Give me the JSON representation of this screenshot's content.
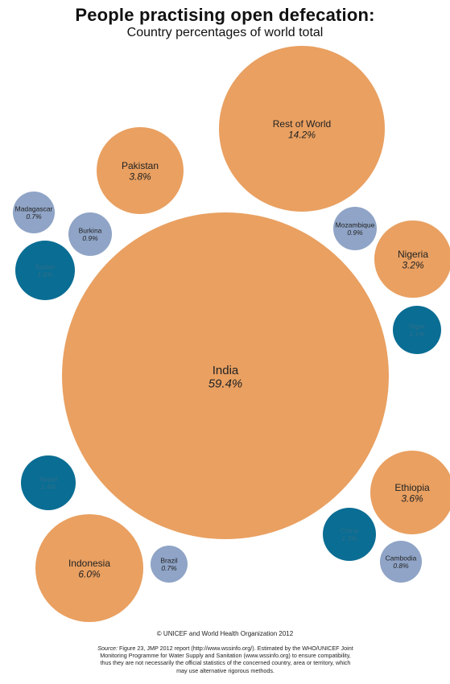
{
  "colors": {
    "large": "#E9A061",
    "small_light": "#8FA4C6",
    "small_dark": "#0A6D93",
    "label": "#222222",
    "label_on_dark": "#2d6f8c"
  },
  "chart_data": {
    "type": "bubble",
    "title": "People practising open defecation:",
    "subtitle": "Country percentages of world total",
    "unit": "%",
    "items": [
      {
        "name": "India",
        "value": 59.4,
        "display": "59.4%",
        "color": "large"
      },
      {
        "name": "Rest of World",
        "value": 14.2,
        "display": "14.2%",
        "color": "large"
      },
      {
        "name": "Indonesia",
        "value": 6.0,
        "display": "6.0%",
        "color": "large"
      },
      {
        "name": "Pakistan",
        "value": 3.8,
        "display": "3.8%",
        "color": "large"
      },
      {
        "name": "Ethiopia",
        "value": 3.6,
        "display": "3.6%",
        "color": "large"
      },
      {
        "name": "Nigeria",
        "value": 3.2,
        "display": "3.2%",
        "color": "large"
      },
      {
        "name": "Sudan",
        "value": 1.6,
        "display": "1.6%",
        "color": "small_dark"
      },
      {
        "name": "Nepal",
        "value": 1.4,
        "display": "1.4%",
        "color": "small_dark"
      },
      {
        "name": "China",
        "value": 1.3,
        "display": "1.3%",
        "color": "small_dark"
      },
      {
        "name": "Niger",
        "value": 1.1,
        "display": "1.1%",
        "color": "small_dark"
      },
      {
        "name": "Burkina",
        "value": 0.9,
        "display": "0.9%",
        "color": "small_light"
      },
      {
        "name": "Mozambique",
        "value": 0.9,
        "display": "0.9%",
        "color": "small_light"
      },
      {
        "name": "Cambodia",
        "value": 0.8,
        "display": "0.8%",
        "color": "small_light"
      },
      {
        "name": "Madagascar",
        "value": 0.7,
        "display": "0.7%",
        "color": "small_light"
      },
      {
        "name": "Brazil",
        "value": 0.7,
        "display": "0.7%",
        "color": "small_light"
      }
    ]
  },
  "footer": {
    "copyright": "© UNICEF and World Health Organization 2012",
    "source_label": "Source:",
    "source_text": "Figure 23, JMP 2012 report (http://www.wssinfo.org/). Estimated by the WHO/UNICEF Joint Monitoring Programme for Water Supply and Sanitation (www.wssinfo.org) to ensure compatibility, thus they are not necessarily the official statistics of the concerned country, area or territory, which may use alternative rigorous methods."
  }
}
